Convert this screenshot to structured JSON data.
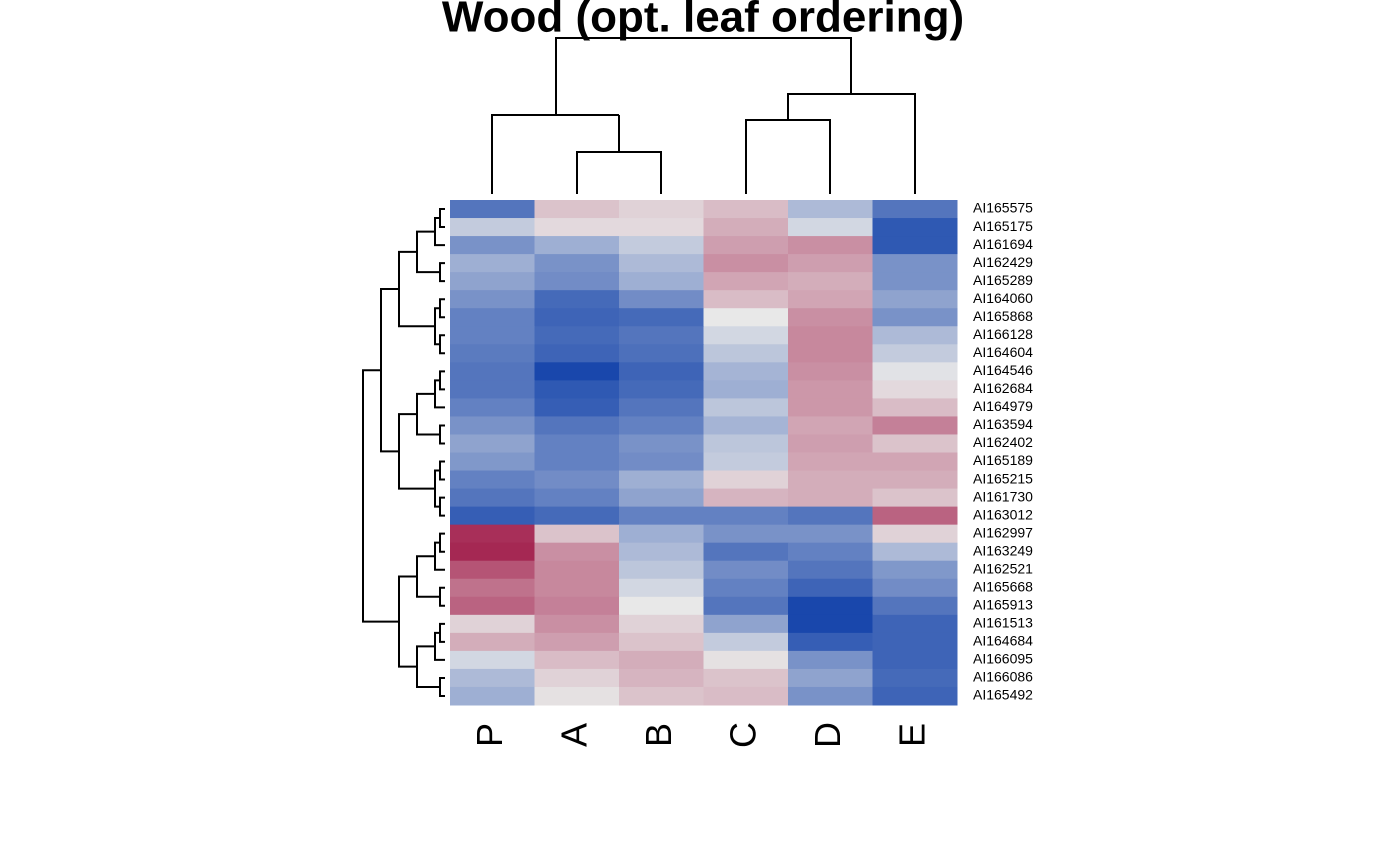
{
  "chart_data": {
    "type": "heatmap",
    "title": "Wood (opt. leaf ordering)",
    "columns": [
      "P",
      "A",
      "B",
      "C",
      "D",
      "E"
    ],
    "rows": [
      "AI165575",
      "AI165175",
      "AI161694",
      "AI162429",
      "AI165289",
      "AI164060",
      "AI165868",
      "AI166128",
      "AI164604",
      "AI164546",
      "AI162684",
      "AI164979",
      "AI163594",
      "AI162402",
      "AI165189",
      "AI165215",
      "AI161730",
      "AI163012",
      "AI162997",
      "AI163249",
      "AI162521",
      "AI165668",
      "AI165913",
      "AI161513",
      "AI164684",
      "AI166095",
      "AI166086",
      "AI165492"
    ],
    "values": [
      [
        -2,
        0.5,
        0.3,
        0.6,
        -0.8,
        -2
      ],
      [
        -0.5,
        0.2,
        0.2,
        0.8,
        -0.3,
        -2.5
      ],
      [
        -1.5,
        -1,
        -0.5,
        1,
        1.2,
        -2.5
      ],
      [
        -1,
        -1.5,
        -0.8,
        1.2,
        1,
        -1.5
      ],
      [
        -1.2,
        -1.6,
        -1,
        0.9,
        0.8,
        -1.5
      ],
      [
        -1.5,
        -2.2,
        -1.6,
        0.6,
        0.9,
        -1.2
      ],
      [
        -1.8,
        -2.3,
        -2.2,
        0,
        1.2,
        -1.5
      ],
      [
        -1.8,
        -2.2,
        -2,
        -0.3,
        1.3,
        -0.8
      ],
      [
        -1.9,
        -2.3,
        -2.1,
        -0.6,
        1.3,
        -0.5
      ],
      [
        -2,
        -2.8,
        -2.3,
        -0.9,
        1.2,
        -0.1
      ],
      [
        -2,
        -2.5,
        -2.2,
        -1,
        1.1,
        0.2
      ],
      [
        -1.8,
        -2.4,
        -2,
        -0.6,
        1.1,
        0.6
      ],
      [
        -1.5,
        -2,
        -1.8,
        -0.9,
        0.9,
        1.4
      ],
      [
        -1.2,
        -1.8,
        -1.5,
        -0.6,
        1,
        0.5
      ],
      [
        -1.4,
        -1.8,
        -1.6,
        -0.5,
        0.9,
        0.9
      ],
      [
        -1.8,
        -1.6,
        -1,
        0.3,
        0.8,
        0.8
      ],
      [
        -2,
        -1.8,
        -1.2,
        0.7,
        0.8,
        0.5
      ],
      [
        -2.4,
        -2.2,
        -1.8,
        -1.8,
        -2,
        1.8
      ],
      [
        2.5,
        0.5,
        -1,
        -1.5,
        -1.5,
        0.3
      ],
      [
        2.6,
        1.2,
        -0.8,
        -2,
        -1.8,
        -0.8
      ],
      [
        2,
        1.3,
        -0.6,
        -1.6,
        -2,
        -1.4
      ],
      [
        1.6,
        1.3,
        -0.3,
        -1.8,
        -2.3,
        -1.6
      ],
      [
        1.8,
        1.4,
        0,
        -2,
        -2.8,
        -2
      ],
      [
        0.3,
        1.2,
        0.3,
        -1.2,
        -2.8,
        -2.3
      ],
      [
        0.8,
        1,
        0.5,
        -0.5,
        -2.4,
        -2.3
      ],
      [
        -0.3,
        0.6,
        0.8,
        0.1,
        -1.5,
        -2.3
      ],
      [
        -0.8,
        0.3,
        0.7,
        0.5,
        -1.2,
        -2.2
      ],
      [
        -1,
        0.1,
        0.5,
        0.6,
        -1.5,
        -2.3
      ]
    ],
    "zlim": [
      -3,
      3
    ],
    "colormap": {
      "low": "#0a3ca8",
      "mid": "#e8e8e8",
      "high": "#9b0a3c"
    }
  }
}
